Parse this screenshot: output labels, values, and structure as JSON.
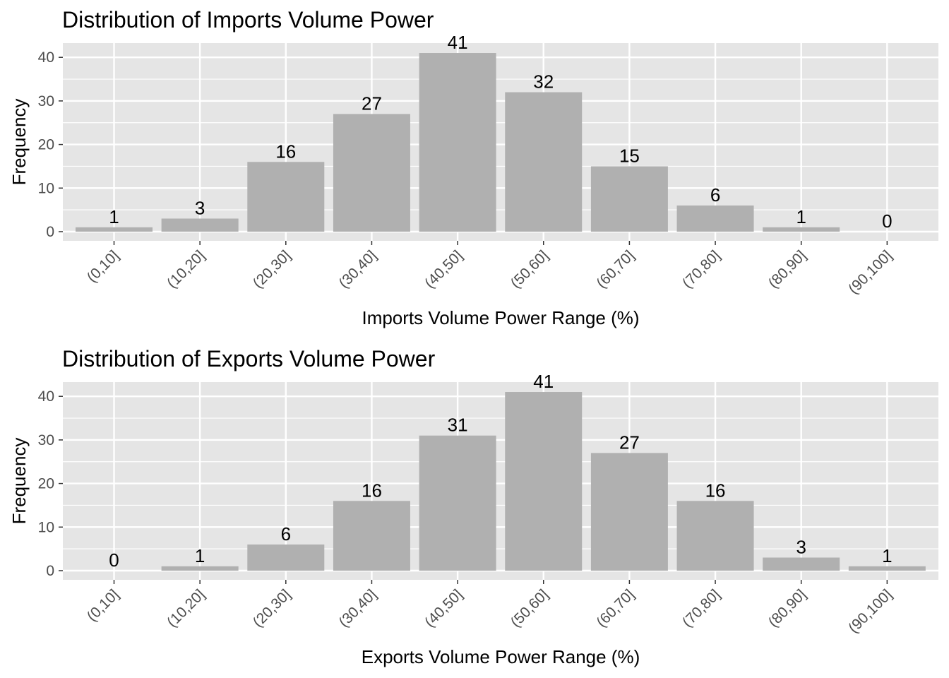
{
  "colors": {
    "panel_bg": "#e5e5e5",
    "grid": "#ffffff",
    "bar": "#b0b0b0",
    "tick_text": "#4d4d4d",
    "text": "#000000"
  },
  "chart_data": [
    {
      "type": "bar",
      "title": "Distribution of Imports Volume Power",
      "xlabel": "Imports Volume Power Range (%)",
      "ylabel": "Frequency",
      "categories": [
        "(0,10]",
        "(10,20]",
        "(20,30]",
        "(30,40]",
        "(40,50]",
        "(50,60]",
        "(60,70]",
        "(70,80]",
        "(80,90]",
        "(90,100]"
      ],
      "values": [
        1,
        3,
        16,
        27,
        41,
        32,
        15,
        6,
        1,
        0
      ],
      "yticks": [
        0,
        10,
        20,
        30,
        40
      ],
      "ylim": [
        0,
        43
      ],
      "grid": true,
      "legend": "none"
    },
    {
      "type": "bar",
      "title": "Distribution of Exports Volume Power",
      "xlabel": "Exports Volume Power Range (%)",
      "ylabel": "Frequency",
      "categories": [
        "(0,10]",
        "(10,20]",
        "(20,30]",
        "(30,40]",
        "(40,50]",
        "(50,60]",
        "(60,70]",
        "(70,80]",
        "(80,90]",
        "(90,100]"
      ],
      "values": [
        0,
        1,
        6,
        16,
        31,
        41,
        27,
        16,
        3,
        1
      ],
      "yticks": [
        0,
        10,
        20,
        30,
        40
      ],
      "ylim": [
        0,
        43
      ],
      "grid": true,
      "legend": "none"
    }
  ]
}
